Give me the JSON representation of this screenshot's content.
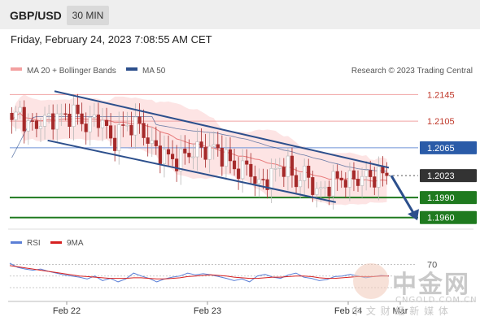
{
  "header": {
    "symbol": "GBP/USD",
    "timeframe": "30 MIN"
  },
  "datetime": "Friday, February 24, 2023 7:08:55 AM CET",
  "legend": {
    "ma20": "MA 20 + Bollinger Bands",
    "ma50": "MA 50",
    "credit": "Research © 2023 Trading Central",
    "rsi": "RSI",
    "ma9": "9MA"
  },
  "colors": {
    "candle_up": "#cfcfcf",
    "candle_down": "#a52a2a",
    "bollinger": "#f9b3b3",
    "ma20": "#e87a7a",
    "ma50": "#2c4f8c",
    "channel": "#2c4f8c",
    "resistance": "#c0392b",
    "pivot": "#2a5ba8",
    "support": "#1f7a1f",
    "current": "#333333"
  },
  "chart_data": [
    {
      "type": "candlestick",
      "title": "GBP/USD 30 MIN",
      "x_tick_labels": [
        "Feb 22",
        "Feb 23",
        "Feb 24",
        "Mar"
      ],
      "ylim": [
        1.1945,
        1.2165
      ],
      "levels": [
        {
          "label": "1.2145",
          "value": 1.2145,
          "kind": "resistance"
        },
        {
          "label": "1.2105",
          "value": 1.2105,
          "kind": "resistance"
        },
        {
          "label": "1.2065",
          "value": 1.2065,
          "kind": "pivot"
        },
        {
          "label": "1.2023",
          "value": 1.2023,
          "kind": "current"
        },
        {
          "label": "1.1990",
          "value": 1.199,
          "kind": "support"
        },
        {
          "label": "1.1960",
          "value": 1.196,
          "kind": "support"
        }
      ],
      "channel": {
        "upper": [
          [
            0.0,
            1.215
          ],
          [
            1.0,
            1.2035
          ]
        ],
        "lower": [
          [
            0.1,
            1.2076
          ],
          [
            0.86,
            1.1983
          ]
        ]
      },
      "close_path": [
        1.21,
        1.2125,
        1.2095,
        1.21,
        1.2105,
        1.2108,
        1.2112,
        1.211,
        1.212,
        1.2105,
        1.2098,
        1.211,
        1.2105,
        1.207,
        1.209,
        1.2098,
        1.21,
        1.2095,
        1.207,
        1.206,
        1.2055,
        1.2045,
        1.205,
        1.2055,
        1.2063,
        1.206,
        1.2065,
        1.206,
        1.205,
        1.2035,
        1.203,
        1.204,
        1.2005,
        1.2015,
        1.2025,
        1.2035,
        1.204,
        1.201,
        1.2028,
        1.2015,
        1.1995,
        1.2005,
        1.2015,
        1.202,
        1.2015,
        1.2018,
        1.2022,
        1.202,
        1.2025,
        1.2023
      ]
    },
    {
      "type": "line",
      "title": "RSI",
      "y_tick_labels": [
        "70"
      ],
      "ylim": [
        0,
        100
      ],
      "series": [
        {
          "name": "RSI",
          "values": [
            72,
            65,
            62,
            60,
            62,
            58,
            55,
            52,
            50,
            48,
            45,
            50,
            42,
            46,
            40,
            45,
            55,
            50,
            46,
            40,
            45,
            48,
            50,
            55,
            52,
            54,
            52,
            49,
            46,
            42,
            45,
            40,
            50,
            53,
            48,
            46,
            52,
            55,
            48,
            46,
            42,
            44,
            49,
            50,
            53,
            50,
            47,
            49,
            51,
            50
          ]
        },
        {
          "name": "9MA",
          "values": [
            68,
            66,
            64,
            62,
            60,
            58,
            56,
            54,
            52,
            50,
            49,
            48,
            47,
            46,
            46,
            46,
            47,
            47,
            46,
            45,
            45,
            46,
            47,
            49,
            50,
            51,
            52,
            51,
            50,
            48,
            47,
            46,
            46,
            47,
            48,
            48,
            49,
            50,
            50,
            49,
            47,
            46,
            46,
            47,
            48,
            49,
            49,
            49,
            50,
            50
          ]
        }
      ]
    }
  ],
  "watermark": {
    "cn": "中金网",
    "sub": "中 文 财 经 新 媒 体",
    "url": "CNGOLD.COM.CN"
  }
}
